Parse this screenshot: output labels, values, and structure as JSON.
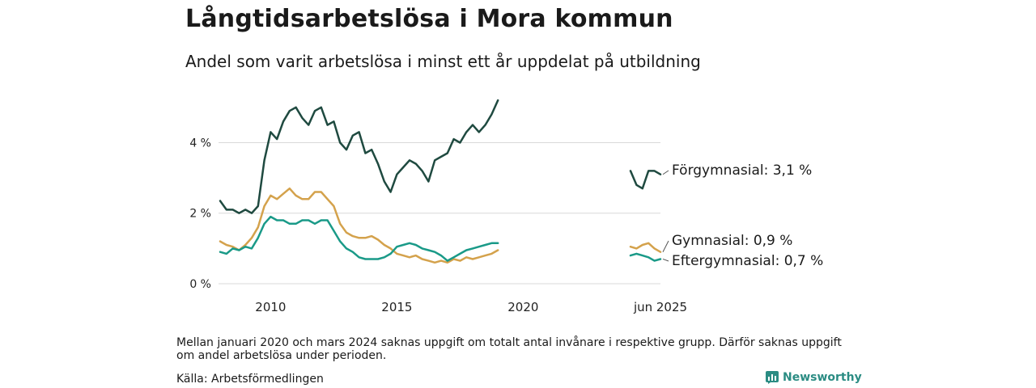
{
  "header": {
    "title": "Långtidsarbetslösa i Mora kommun",
    "subtitle": "Andel som varit arbetslösa i minst ett år uppdelat på utbildning"
  },
  "footer": {
    "note": "Mellan januari 2020 och mars 2024 saknas uppgift om totalt antal invånare i respektive grupp. Därför saknas uppgift om andel arbetslösa under perioden.",
    "source": "Källa: Arbetsförmedlingen",
    "brand": "Newsworthy"
  },
  "chart_data": {
    "type": "line",
    "ylim": [
      0,
      5.5
    ],
    "grid": true,
    "y_ticks": [
      {
        "value": 0,
        "label": "0 %"
      },
      {
        "value": 2,
        "label": "2 %"
      },
      {
        "value": 4,
        "label": "4 %"
      }
    ],
    "x_ticks": [
      "2010",
      "2015",
      "2020",
      "jun 2025"
    ],
    "x_axis": {
      "start_year": 2008.0,
      "main_end_year": 2020.95,
      "gap_start_year": 2021.0,
      "gap_end_year": 2024.25,
      "end_year": 2025.5
    },
    "colors": {
      "forgymnasial": "#1f4a40",
      "gymnasial": "#d4a24c",
      "eftergymnasial": "#1a9a88"
    },
    "series": [
      {
        "name": "Förgymnasial",
        "label": "Förgymnasial: 3,1 %",
        "color_key": "forgymnasial",
        "segments": [
          {
            "start": 2008.0,
            "step": 0.25,
            "values": [
              2.35,
              2.1,
              2.1,
              2.0,
              2.1,
              2.0,
              2.2,
              3.5,
              4.3,
              4.1,
              4.6,
              4.9,
              5.0,
              4.7,
              4.5,
              4.9,
              5.0,
              4.5,
              4.6,
              4.0,
              3.8,
              4.2,
              4.3,
              3.7,
              3.8,
              3.4,
              2.9,
              2.6,
              3.1,
              3.3,
              3.5,
              3.4,
              3.2,
              2.9,
              3.5,
              3.6,
              3.7,
              4.1,
              4.0,
              4.3,
              4.5,
              4.3,
              4.5,
              4.8,
              5.2
            ]
          },
          {
            "start": 2024.25,
            "step": 0.25,
            "values": [
              3.2,
              2.8,
              2.7,
              3.2,
              3.2,
              3.1
            ]
          }
        ]
      },
      {
        "name": "Gymnasial",
        "label": "Gymnasial: 0,9 %",
        "color_key": "gymnasial",
        "segments": [
          {
            "start": 2008.0,
            "step": 0.25,
            "values": [
              1.2,
              1.1,
              1.05,
              0.95,
              1.1,
              1.3,
              1.6,
              2.2,
              2.5,
              2.4,
              2.55,
              2.7,
              2.5,
              2.4,
              2.4,
              2.6,
              2.6,
              2.4,
              2.2,
              1.7,
              1.45,
              1.35,
              1.3,
              1.3,
              1.35,
              1.25,
              1.1,
              1.0,
              0.85,
              0.8,
              0.75,
              0.8,
              0.7,
              0.65,
              0.6,
              0.65,
              0.6,
              0.7,
              0.65,
              0.75,
              0.7,
              0.75,
              0.8,
              0.85,
              0.95
            ]
          },
          {
            "start": 2024.25,
            "step": 0.25,
            "values": [
              1.05,
              1.0,
              1.1,
              1.15,
              1.0,
              0.9
            ]
          }
        ]
      },
      {
        "name": "Eftergymnasial",
        "label": "Eftergymnasial: 0,7 %",
        "color_key": "eftergymnasial",
        "segments": [
          {
            "start": 2008.0,
            "step": 0.25,
            "values": [
              0.9,
              0.85,
              1.0,
              0.95,
              1.05,
              1.0,
              1.3,
              1.7,
              1.9,
              1.8,
              1.8,
              1.7,
              1.7,
              1.8,
              1.8,
              1.7,
              1.8,
              1.8,
              1.5,
              1.2,
              1.0,
              0.9,
              0.75,
              0.7,
              0.7,
              0.7,
              0.75,
              0.85,
              1.05,
              1.1,
              1.15,
              1.1,
              1.0,
              0.95,
              0.9,
              0.8,
              0.65,
              0.75,
              0.85,
              0.95,
              1.0,
              1.05,
              1.1,
              1.15,
              1.15
            ]
          },
          {
            "start": 2024.25,
            "step": 0.25,
            "values": [
              0.8,
              0.85,
              0.8,
              0.75,
              0.65,
              0.7
            ]
          }
        ]
      }
    ]
  }
}
